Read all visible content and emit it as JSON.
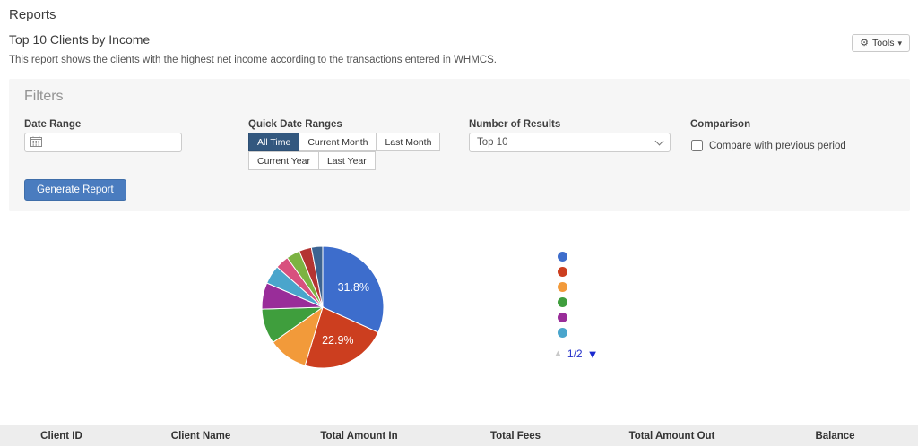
{
  "header": {
    "app_title": "Reports",
    "report_title": "Top 10 Clients by Income",
    "description": "This report shows the clients with the highest net income according to the transactions entered in WHMCS.",
    "tools_label": "Tools"
  },
  "icons": {
    "gear": "⚙",
    "caret_down": "▾",
    "legend_prev": "▲",
    "legend_next": "▼"
  },
  "filters": {
    "heading": "Filters",
    "date_range": {
      "label": "Date Range",
      "value": ""
    },
    "quick_ranges": {
      "label": "Quick Date Ranges",
      "options": [
        "All Time",
        "Current Month",
        "Last Month",
        "Current Year",
        "Last Year"
      ],
      "active": "All Time"
    },
    "number_of_results": {
      "label": "Number of Results",
      "selected": "Top 10"
    },
    "comparison": {
      "label": "Comparison",
      "checkbox_label": "Compare with previous period",
      "checked": false
    },
    "generate_button": "Generate Report"
  },
  "chart_data": {
    "type": "pie",
    "values": [
      31.8,
      22.9,
      10.5,
      9.3,
      7.0,
      5.0,
      3.6,
      3.6,
      3.3,
      3.0
    ],
    "slice_labels": [
      "31.8%",
      "22.9%",
      "",
      "",
      "",
      "",
      "",
      "",
      "",
      ""
    ],
    "colors": [
      "#3d6dcc",
      "#cc3e1f",
      "#f29a3a",
      "#3f9e3d",
      "#992d99",
      "#4aa5cc",
      "#d8517e",
      "#7cb342",
      "#b43432",
      "#3c6391"
    ],
    "start_angle": "top-clockwise",
    "title": "",
    "legend": {
      "position": "right",
      "page_label": "1/2",
      "dots_visible": 6
    }
  },
  "table": {
    "columns": [
      "Client ID",
      "Client Name",
      "Total Amount In",
      "Total Fees",
      "Total Amount Out",
      "Balance"
    ]
  },
  "theme": {
    "primary_button": "#4a7cbf",
    "active_range_button": "#33587f",
    "filters_panel_bg": "#f6f6f6",
    "table_header_bg": "#ededed",
    "legend_page_text": "#2430c9"
  }
}
